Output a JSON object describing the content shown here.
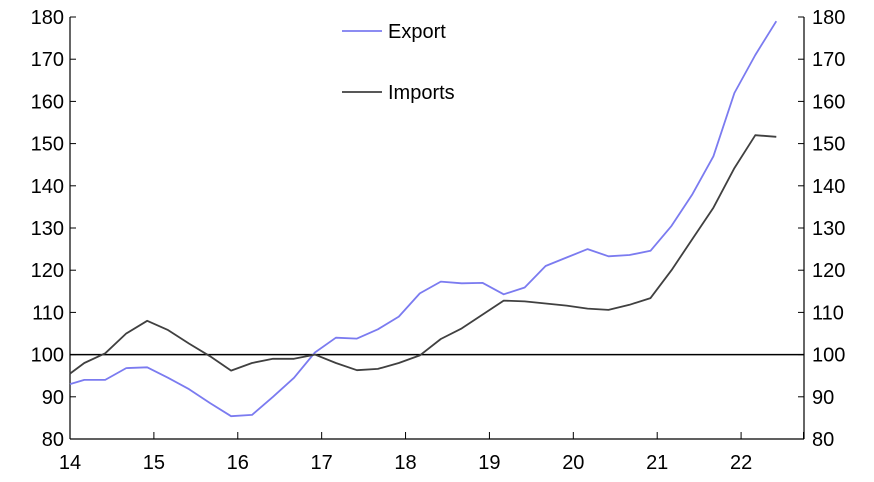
{
  "chart_data": {
    "type": "line",
    "title": "",
    "xlabel": "",
    "ylabel": "",
    "xlim": [
      14,
      22.75
    ],
    "ylim": [
      80,
      180
    ],
    "x_ticks": [
      14,
      15,
      16,
      17,
      18,
      19,
      20,
      21,
      22
    ],
    "y_ticks": [
      80,
      90,
      100,
      110,
      120,
      130,
      140,
      150,
      160,
      170,
      180
    ],
    "y_axis_right": true,
    "reference_line": 100,
    "grid": false,
    "legend": {
      "placement": "top-center"
    },
    "series": [
      {
        "name": "Export",
        "color": "#7b7bf0",
        "x": [
          14.0,
          14.17,
          14.42,
          14.67,
          14.92,
          15.17,
          15.42,
          15.67,
          15.92,
          16.17,
          16.42,
          16.67,
          16.92,
          17.17,
          17.42,
          17.67,
          17.92,
          18.17,
          18.42,
          18.67,
          18.92,
          19.17,
          19.42,
          19.67,
          19.92,
          20.17,
          20.42,
          20.67,
          20.92,
          21.17,
          21.42,
          21.67,
          21.92,
          22.17,
          22.42
        ],
        "values": [
          93,
          94,
          94,
          96.8,
          97,
          94.5,
          91.8,
          88.5,
          85.4,
          85.7,
          90,
          94.5,
          100.5,
          104,
          103.8,
          106,
          109,
          114.5,
          117.3,
          116.9,
          117,
          114.3,
          115.9,
          121,
          123,
          125,
          123.3,
          123.6,
          124.6,
          130.5,
          138,
          147,
          162,
          171,
          179
        ]
      },
      {
        "name": "Imports",
        "color": "#404040",
        "x": [
          14.0,
          14.17,
          14.42,
          14.67,
          14.92,
          15.17,
          15.42,
          15.67,
          15.92,
          16.17,
          16.42,
          16.67,
          16.92,
          17.17,
          17.42,
          17.67,
          17.92,
          18.17,
          18.42,
          18.67,
          18.92,
          19.17,
          19.42,
          19.67,
          19.92,
          20.17,
          20.42,
          20.67,
          20.92,
          21.17,
          21.42,
          21.67,
          21.92,
          22.17,
          22.42
        ],
        "values": [
          95.5,
          98,
          100.3,
          105,
          108,
          105.8,
          102.6,
          99.6,
          96.2,
          98,
          99,
          99,
          100,
          98,
          96.3,
          96.6,
          98,
          99.8,
          103.7,
          106.2,
          109.5,
          112.8,
          112.6,
          112.1,
          111.6,
          110.9,
          110.6,
          111.8,
          113.4,
          120,
          127.4,
          134.8,
          144.2,
          152,
          151.6
        ]
      }
    ]
  }
}
